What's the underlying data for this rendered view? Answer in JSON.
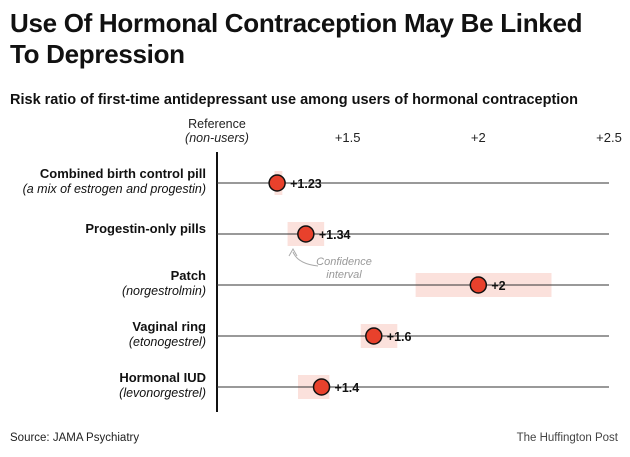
{
  "title": "Use Of Hormonal Contraception May Be Linked To Depression",
  "subtitle": "Risk ratio of first-time antidepressant use among users of hormonal contraception",
  "source": "Source: JAMA Psychiatry",
  "credit": "The Huffington Post",
  "colors": {
    "dot": "#e8412c",
    "ci": "#fbe1dc",
    "axis": "#111111",
    "line": "#333333"
  },
  "chart_data": {
    "type": "scatter",
    "title": "Use Of Hormonal Contraception May Be Linked To Depression",
    "subtitle": "Risk ratio of first-time antidepressant use among users of hormonal contraception",
    "reference": {
      "value": 1.0,
      "label": "Reference",
      "sublabel": "(non-users)"
    },
    "x_ticks": [
      {
        "value": 1.5,
        "label": "+1.5"
      },
      {
        "value": 2.0,
        "label": "+2"
      },
      {
        "value": 2.5,
        "label": "+2.5"
      }
    ],
    "xlim": [
      1.0,
      2.5
    ],
    "categories": [
      {
        "name": "Combined birth control pill",
        "sub": "(a mix of estrogen and progestin)",
        "value": 1.23,
        "label": "+1.23",
        "ci": [
          1.22,
          1.25
        ]
      },
      {
        "name": "Progestin-only pills",
        "sub": "",
        "value": 1.34,
        "label": "+1.34",
        "ci": [
          1.27,
          1.41
        ]
      },
      {
        "name": "Patch",
        "sub": "(norgestrolmin)",
        "value": 2.0,
        "label": "+2",
        "ci": [
          1.76,
          2.28
        ]
      },
      {
        "name": "Vaginal ring",
        "sub": "(etonogestrel)",
        "value": 1.6,
        "label": "+1.6",
        "ci": [
          1.55,
          1.69
        ]
      },
      {
        "name": "Hormonal IUD",
        "sub": "(levonorgestrel)",
        "value": 1.4,
        "label": "+1.4",
        "ci": [
          1.31,
          1.43
        ]
      }
    ],
    "annotations": [
      {
        "line1": "Confidence",
        "line2": "interval"
      }
    ],
    "grid": false
  }
}
